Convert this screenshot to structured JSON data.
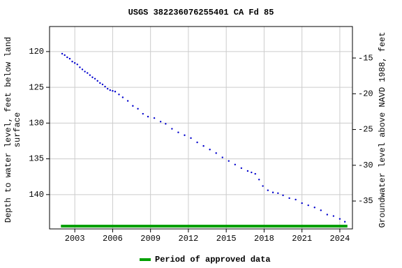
{
  "chart_data": {
    "type": "scatter",
    "title": "USGS 382236076255401 CA Fd  85",
    "y_label": [
      "Depth to water level, feet below land",
      "surface"
    ],
    "y2_label": "Groundwater level above NAVD 1988, feet",
    "xlim": [
      2001,
      2025
    ],
    "xticks": [
      2003,
      2006,
      2009,
      2012,
      2015,
      2018,
      2021,
      2024
    ],
    "ylim": [
      116.5,
      144.8
    ],
    "yticks": [
      120,
      125,
      130,
      135,
      140
    ],
    "y2lim": [
      -10.6,
      -38.9
    ],
    "y2ticks": [
      -15,
      -20,
      -25,
      -30,
      -35
    ],
    "grid": true,
    "series": [
      {
        "name": "Depth to water level",
        "color": "#0000cc",
        "x": [
          2002.0,
          2002.2,
          2002.4,
          2002.6,
          2002.8,
          2003.0,
          2003.2,
          2003.4,
          2003.6,
          2003.8,
          2004.0,
          2004.2,
          2004.4,
          2004.6,
          2004.8,
          2005.0,
          2005.2,
          2005.4,
          2005.6,
          2005.8,
          2006.0,
          2006.2,
          2006.5,
          2006.8,
          2007.2,
          2007.6,
          2008.0,
          2008.4,
          2008.8,
          2009.3,
          2009.8,
          2010.2,
          2010.7,
          2011.2,
          2011.7,
          2012.2,
          2012.7,
          2013.2,
          2013.7,
          2014.2,
          2014.7,
          2015.2,
          2015.7,
          2016.2,
          2016.7,
          2017.0,
          2017.3,
          2017.6,
          2017.9,
          2018.3,
          2018.7,
          2019.1,
          2019.5,
          2020.0,
          2020.5,
          2021.0,
          2021.5,
          2022.0,
          2022.5,
          2023.0,
          2023.5,
          2024.0,
          2024.4
        ],
        "values": [
          120.3,
          120.5,
          120.8,
          121.0,
          121.4,
          121.6,
          121.8,
          122.2,
          122.5,
          122.8,
          123.0,
          123.3,
          123.6,
          123.8,
          124.1,
          124.4,
          124.6,
          124.9,
          125.2,
          125.4,
          125.5,
          125.6,
          126.0,
          126.4,
          126.9,
          127.6,
          128.0,
          128.7,
          129.1,
          129.3,
          129.8,
          130.1,
          130.8,
          131.3,
          131.7,
          132.1,
          132.7,
          133.2,
          133.7,
          134.2,
          134.8,
          135.3,
          135.8,
          136.3,
          136.7,
          136.9,
          137.1,
          137.9,
          138.8,
          139.4,
          139.7,
          139.8,
          140.1,
          140.5,
          140.7,
          141.2,
          141.5,
          141.8,
          142.2,
          142.8,
          143.0,
          143.4,
          143.8
        ]
      }
    ],
    "approved_period": {
      "name": "Period of approved data",
      "color": "#00a000",
      "x": [
        2001.9,
        2024.6
      ]
    }
  }
}
